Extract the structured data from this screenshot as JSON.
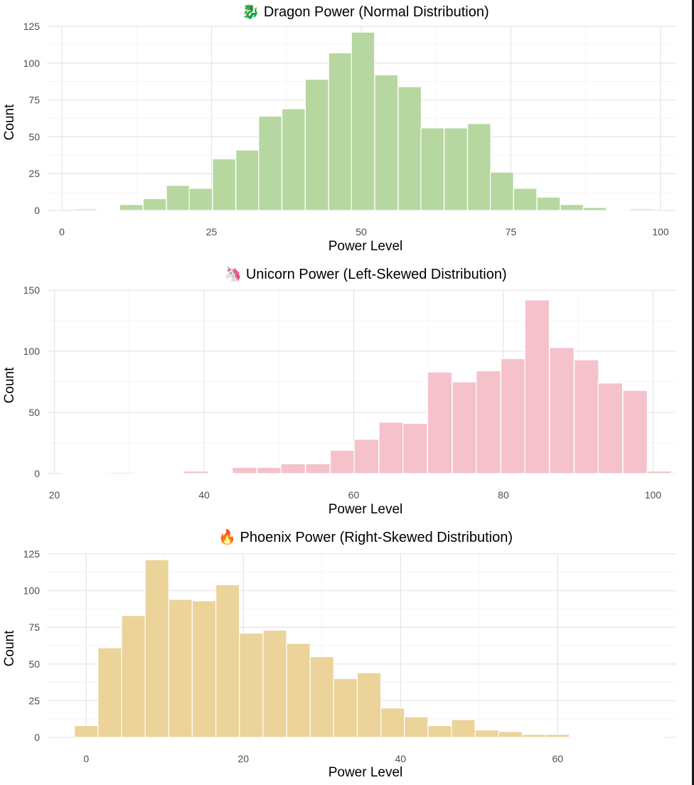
{
  "chart_data": [
    {
      "type": "bar",
      "name": "dragon",
      "icon": "🐉",
      "title": "Dragon Power (Normal Distribution)",
      "xlabel": "Power Level",
      "ylabel": "Count",
      "fill": "#b6d7a0",
      "xlim": [
        -2.5,
        102.5
      ],
      "ylim": [
        0,
        125
      ],
      "xticks": [
        0,
        25,
        50,
        75,
        100
      ],
      "yticks": [
        0,
        25,
        50,
        75,
        100,
        125
      ],
      "binwidth": 3.87,
      "bin_centers": [
        3.9,
        7.7,
        11.6,
        15.5,
        19.4,
        23.2,
        27.1,
        31.0,
        34.8,
        38.7,
        42.6,
        46.5,
        50.3,
        54.2,
        58.1,
        61.9,
        65.8,
        69.7,
        73.5,
        77.4,
        81.3,
        85.2,
        89.0,
        92.9,
        96.8
      ],
      "values": [
        1,
        0,
        4,
        8,
        17,
        15,
        35,
        41,
        64,
        69,
        89,
        107,
        121,
        92,
        84,
        56,
        56,
        59,
        26,
        15,
        9,
        4,
        2,
        0,
        1
      ]
    },
    {
      "type": "bar",
      "name": "unicorn",
      "icon": "🦄",
      "title": "Unicorn Power (Left-Skewed Distribution)",
      "xlabel": "Power Level",
      "ylabel": "Count",
      "fill": "#f5c2cc",
      "xlim": [
        19,
        103
      ],
      "ylim": [
        0,
        150
      ],
      "xticks": [
        20,
        40,
        60,
        80,
        100
      ],
      "yticks": [
        0,
        50,
        100,
        150
      ],
      "binwidth": 3.26,
      "bin_centers": [
        22.6,
        25.9,
        29.1,
        32.4,
        35.6,
        38.9,
        42.2,
        45.4,
        48.7,
        51.9,
        55.2,
        58.5,
        61.7,
        65.0,
        68.2,
        71.5,
        74.8,
        78.0,
        81.3,
        84.5,
        87.8,
        91.1,
        94.3,
        97.6,
        100.8
      ],
      "values": [
        0,
        0,
        1,
        0,
        0,
        2,
        0,
        5,
        5,
        8,
        8,
        19,
        28,
        42,
        41,
        83,
        75,
        84,
        94,
        142,
        103,
        93,
        74,
        68,
        2
      ]
    },
    {
      "type": "bar",
      "name": "phoenix",
      "icon": "🔥",
      "title": "Phoenix Power (Right-Skewed Distribution)",
      "xlabel": "Power Level",
      "ylabel": "Count",
      "fill": "#ecd39a",
      "xlim": [
        -5,
        75
      ],
      "ylim": [
        0,
        125
      ],
      "xticks": [
        0,
        20,
        40,
        60
      ],
      "yticks": [
        0,
        25,
        50,
        75,
        100,
        125
      ],
      "binwidth": 3.0,
      "bin_centers": [
        0.0,
        3.0,
        6.0,
        9.0,
        12.0,
        15.0,
        18.0,
        21.0,
        24.0,
        27.0,
        30.0,
        33.0,
        36.0,
        39.0,
        42.0,
        45.0,
        48.0,
        51.0,
        54.0,
        57.0,
        60.0,
        63.0,
        66.0,
        69.0,
        72.0
      ],
      "values": [
        8,
        61,
        83,
        121,
        94,
        93,
        104,
        71,
        73,
        64,
        55,
        40,
        44,
        20,
        14,
        8,
        12,
        5,
        4,
        2,
        2,
        0,
        0,
        0,
        0
      ]
    }
  ]
}
